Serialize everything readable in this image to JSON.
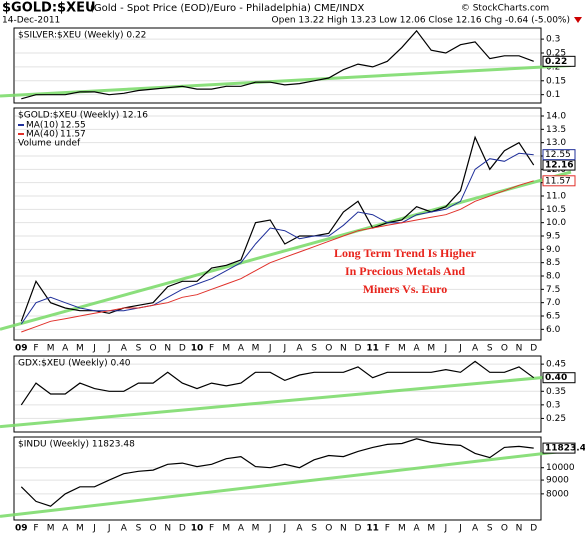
{
  "header": {
    "symbol": "$GOLD:$XEU",
    "description": "(Gold - Spot Price (EOD)/Euro - Philadelphia) CME/INDX",
    "date": "14-Dec-2011",
    "quote": "Open 13.22 High 13.23 Low 12.06 Close 12.16 Chg -0.64 (-5.00%)",
    "credit": "© StockCharts.com"
  },
  "chart_data": [
    {
      "type": "line",
      "title": "$SILVER:$XEU (Weekly) 0.22",
      "categories": [
        null,
        null,
        null,
        null,
        null,
        null,
        null,
        null,
        null,
        null,
        null,
        null,
        null,
        null,
        null,
        null,
        null,
        null,
        null,
        null,
        null,
        null,
        null,
        null,
        null,
        null,
        null,
        null,
        null,
        null,
        null,
        null,
        null,
        null,
        null,
        null
      ],
      "series": [
        {
          "color": "#000000",
          "values": [
            0.085,
            0.1,
            0.1,
            0.1,
            0.11,
            0.11,
            0.1,
            0.105,
            0.115,
            0.12,
            0.125,
            0.13,
            0.12,
            0.12,
            0.13,
            0.13,
            0.145,
            0.145,
            0.135,
            0.14,
            0.15,
            0.16,
            0.19,
            0.21,
            0.2,
            0.22,
            0.27,
            0.33,
            0.26,
            0.25,
            0.28,
            0.29,
            0.23,
            0.24,
            0.24,
            0.22
          ]
        }
      ],
      "trend_line": {
        "color": "#7fdc6e",
        "values": [
          0.095,
          0.205
        ]
      },
      "ylim": [
        0.07,
        0.34
      ],
      "yticks": [
        0.1,
        0.15,
        0.2,
        0.25,
        0.3
      ],
      "grid": true
    },
    {
      "type": "line",
      "title": "$GOLD:$XEU (Weekly) 12.16",
      "note": "Volume undef",
      "categories": [
        "09",
        "F",
        "M",
        "A",
        "M",
        "J",
        "J",
        "A",
        "S",
        "O",
        "N",
        "D",
        "10",
        "F",
        "M",
        "A",
        "M",
        "J",
        "J",
        "A",
        "S",
        "O",
        "N",
        "D",
        "11",
        "F",
        "M",
        "A",
        "M",
        "J",
        "J",
        "A",
        "S",
        "O",
        "N",
        "D"
      ],
      "series": [
        {
          "color": "#000000",
          "values": [
            6.3,
            7.8,
            7.0,
            6.8,
            6.7,
            6.7,
            6.6,
            6.8,
            6.9,
            7.0,
            7.6,
            7.8,
            7.8,
            8.3,
            8.4,
            8.6,
            10.0,
            10.1,
            9.2,
            9.5,
            9.5,
            9.6,
            10.4,
            10.8,
            9.8,
            10.0,
            10.1,
            10.6,
            10.4,
            10.6,
            11.2,
            13.2,
            12.0,
            12.7,
            13.0,
            12.16
          ]
        },
        {
          "name": "MA(10)",
          "color": "#1f2f9a",
          "values": [
            6.2,
            7.0,
            7.2,
            7.0,
            6.8,
            6.7,
            6.7,
            6.7,
            6.8,
            6.9,
            7.2,
            7.5,
            7.7,
            7.9,
            8.2,
            8.5,
            9.2,
            9.8,
            9.7,
            9.4,
            9.5,
            9.5,
            9.9,
            10.4,
            10.3,
            10.0,
            10.0,
            10.3,
            10.4,
            10.5,
            10.8,
            12.0,
            12.4,
            12.3,
            12.6,
            12.55
          ]
        },
        {
          "name": "MA(40)",
          "color": "#e0302a",
          "values": [
            5.9,
            6.1,
            6.3,
            6.4,
            6.5,
            6.6,
            6.7,
            6.8,
            6.8,
            6.9,
            7.0,
            7.2,
            7.3,
            7.5,
            7.7,
            7.9,
            8.2,
            8.5,
            8.7,
            8.9,
            9.1,
            9.3,
            9.5,
            9.7,
            9.8,
            9.9,
            10.0,
            10.1,
            10.2,
            10.3,
            10.5,
            10.8,
            11.0,
            11.2,
            11.4,
            11.57
          ]
        }
      ],
      "trend_line": {
        "color": "#7fdc6e",
        "values": [
          6.0,
          11.9
        ]
      },
      "annotation": [
        "Long Term Trend Is Higher",
        "In Precious Metals And",
        "Miners Vs. Euro"
      ],
      "ylim": [
        5.6,
        14.3
      ],
      "yticks": [
        {
          "value": 6,
          "label": "6.0"
        },
        {
          "value": 6.5,
          "label": "6.5"
        },
        {
          "value": 7,
          "label": "7.0"
        },
        {
          "value": 7.5,
          "label": "7.5"
        },
        {
          "value": 8,
          "label": "8.0"
        },
        {
          "value": 8.5,
          "label": "8.5"
        },
        {
          "value": 9,
          "label": "9.0"
        },
        {
          "value": 9.5,
          "label": "9.5"
        },
        {
          "value": 10,
          "label": "10.0"
        },
        {
          "value": 10.5,
          "label": "10.5"
        },
        {
          "value": 11,
          "label": "11.0"
        },
        {
          "value": 11.5,
          "label": "11.5"
        },
        {
          "value": 12,
          "label": "12.0"
        },
        {
          "value": 12.5,
          "label": "12.5"
        },
        {
          "value": 13,
          "label": "13.0"
        },
        {
          "value": 13.5,
          "label": "13.5"
        },
        {
          "value": 14,
          "label": "14.0"
        }
      ],
      "grid": true
    },
    {
      "type": "line",
      "title": "GDX:$XEU (Weekly) 0.40",
      "last_label": "0.40",
      "categories": [
        null,
        null,
        null,
        null,
        null,
        null,
        null,
        null,
        null,
        null,
        null,
        null,
        null,
        null,
        null,
        null,
        null,
        null,
        null,
        null,
        null,
        null,
        null,
        null,
        null,
        null,
        null,
        null,
        null,
        null,
        null,
        null,
        null,
        null,
        null,
        null
      ],
      "series": [
        {
          "color": "#000000",
          "values": [
            0.3,
            0.38,
            0.34,
            0.34,
            0.38,
            0.36,
            0.35,
            0.35,
            0.38,
            0.38,
            0.42,
            0.38,
            0.36,
            0.38,
            0.37,
            0.38,
            0.42,
            0.42,
            0.39,
            0.41,
            0.42,
            0.42,
            0.42,
            0.44,
            0.4,
            0.42,
            0.42,
            0.42,
            0.42,
            0.43,
            0.42,
            0.46,
            0.42,
            0.42,
            0.44,
            0.4
          ]
        }
      ],
      "trend_line": {
        "color": "#7fdc6e",
        "values": [
          0.22,
          0.41
        ]
      },
      "ylim": [
        0.2,
        0.48
      ],
      "yticks": [
        0.25,
        0.3,
        0.35,
        0.45
      ],
      "grid": true
    },
    {
      "type": "line",
      "title": "$INDU (Weekly) 11823.48",
      "log_scale": true,
      "categories": [
        "09",
        "F",
        "M",
        "A",
        "M",
        "J",
        "J",
        "A",
        "S",
        "O",
        "N",
        "D",
        "10",
        "F",
        "M",
        "A",
        "M",
        "J",
        "J",
        "A",
        "S",
        "O",
        "N",
        "D",
        "11",
        "F",
        "M",
        "A",
        "M",
        "J",
        "J",
        "A",
        "S",
        "O",
        "N",
        "D"
      ],
      "series": [
        {
          "color": "#000000",
          "values": [
            8500,
            7500,
            7200,
            8000,
            8500,
            8500,
            9000,
            9500,
            9700,
            9800,
            10300,
            10400,
            10100,
            10300,
            10800,
            11000,
            10100,
            10000,
            10300,
            10000,
            10700,
            11100,
            11000,
            11500,
            11900,
            12200,
            12300,
            12800,
            12400,
            12200,
            12100,
            11300,
            10900,
            11900,
            12000,
            11823.48
          ]
        }
      ],
      "trend_line": {
        "color": "#7fdc6e",
        "values": [
          6600,
          11600
        ]
      },
      "ylim": [
        6400,
        13000
      ],
      "yticks": [
        8000,
        9000,
        10000
      ],
      "grid": true
    }
  ]
}
